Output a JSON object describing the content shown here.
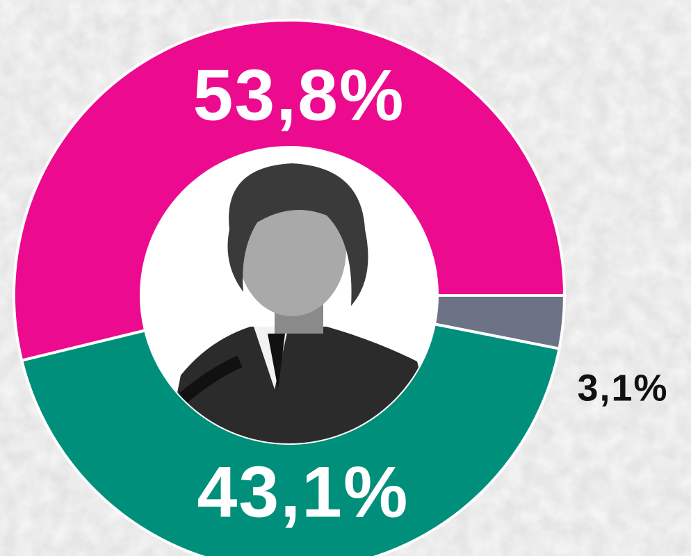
{
  "chart_data": {
    "type": "pie",
    "donut": true,
    "values": [
      53.8,
      43.1,
      3.1
    ],
    "value_labels": [
      "53,8%",
      "43,1%",
      "3,1%"
    ],
    "colors": [
      "#ec0a8f",
      "#008f7b",
      "#6c7386"
    ],
    "label_colors": [
      "#ffffff",
      "#ffffff",
      "#111111"
    ]
  }
}
